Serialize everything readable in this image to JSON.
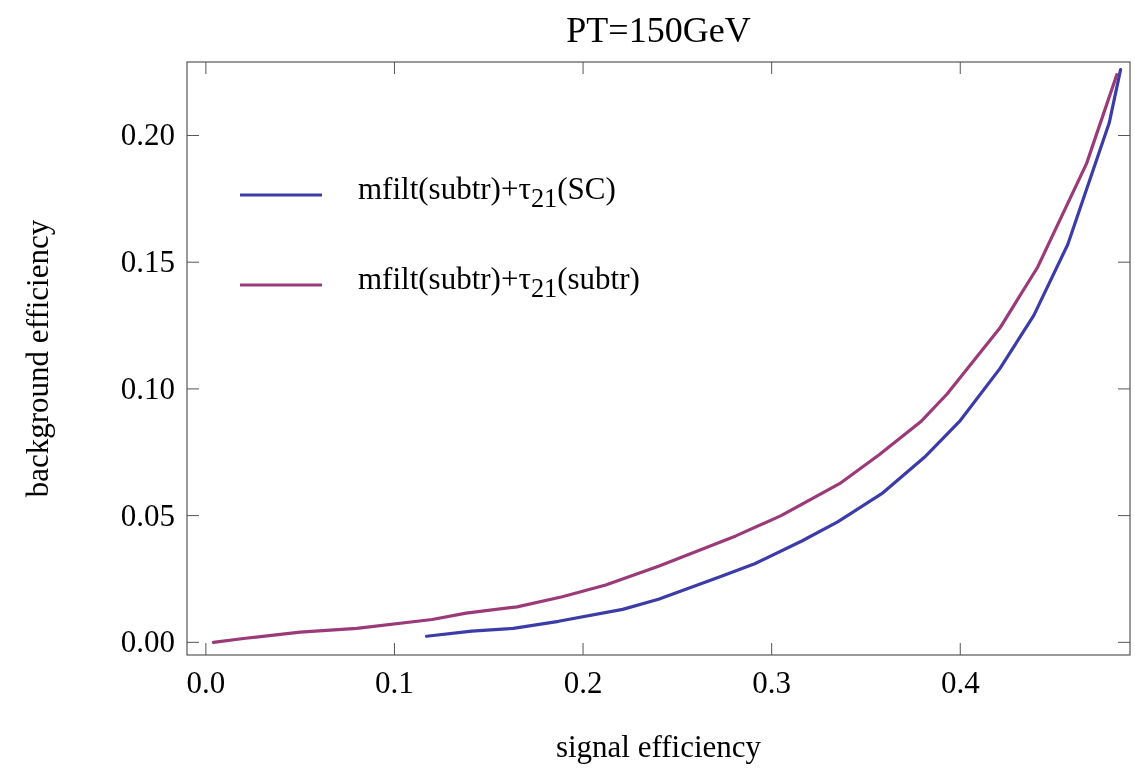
{
  "chart_data": {
    "type": "line",
    "title": "PT=150GeV",
    "xlabel": "signal efficiency",
    "ylabel": "background efficiency",
    "xlim": [
      -0.01,
      0.49
    ],
    "xticks": [
      {
        "value": 0,
        "label": "0.0"
      },
      0.1,
      0.2,
      0.3,
      0.4
    ],
    "ylim": [
      -0.005,
      0.229
    ],
    "yticks": [
      {
        "value": 0,
        "label": "0.00"
      },
      0.05,
      {
        "value": 0.1,
        "label": "0.10"
      },
      0.15,
      {
        "value": 0.2,
        "label": "0.20"
      }
    ],
    "grid": false,
    "legend": "top left",
    "line_style": "solid",
    "marker": "none",
    "series": [
      {
        "name": "mfilt(subtr)+τ$_{21}$(SC)",
        "color": "#3c3ca8",
        "x": [
          0.117,
          0.141,
          0.163,
          0.187,
          0.221,
          0.24,
          0.273,
          0.291,
          0.316,
          0.335,
          0.359,
          0.381,
          0.4,
          0.421,
          0.439,
          0.457,
          0.479,
          0.485
        ],
        "values": [
          0.0024,
          0.0044,
          0.0055,
          0.0083,
          0.013,
          0.017,
          0.026,
          0.031,
          0.04,
          0.0475,
          0.059,
          0.073,
          0.0875,
          0.108,
          0.129,
          0.157,
          0.205,
          0.226
        ]
      },
      {
        "name": "mfilt(subtr)+τ$_{21}$(subtr)",
        "color": "#9a3a78",
        "x": [
          0.004,
          0.021,
          0.05,
          0.08,
          0.12,
          0.138,
          0.165,
          0.189,
          0.212,
          0.24,
          0.281,
          0.305,
          0.336,
          0.357,
          0.379,
          0.393,
          0.421,
          0.441,
          0.467,
          0.483
        ],
        "values": [
          0,
          0.0016,
          0.004,
          0.0055,
          0.009,
          0.0115,
          0.014,
          0.018,
          0.0226,
          0.03,
          0.042,
          0.05,
          0.0626,
          0.074,
          0.087,
          0.098,
          0.124,
          0.148,
          0.189,
          0.224
        ]
      }
    ]
  }
}
